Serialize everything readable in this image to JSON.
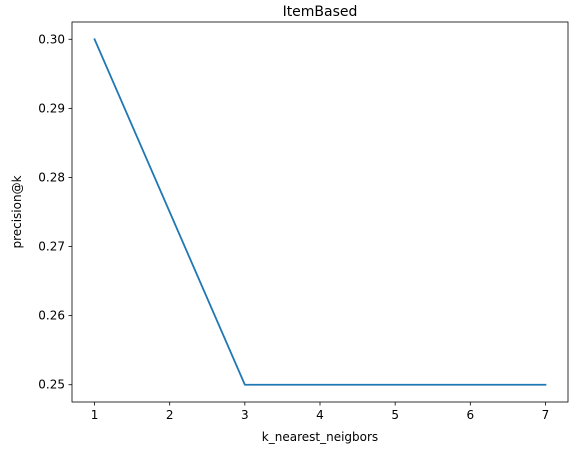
{
  "chart_data": {
    "type": "line",
    "title": "ItemBased",
    "xlabel": "k_nearest_neigbors",
    "ylabel": "precision@k",
    "x": [
      1,
      3,
      7
    ],
    "series": [
      {
        "values": [
          0.3,
          0.25,
          0.25
        ],
        "color": "#1f77b4"
      }
    ],
    "xticks": [
      "1",
      "2",
      "3",
      "4",
      "5",
      "6",
      "7"
    ],
    "yticks": [
      "0.25",
      "0.26",
      "0.27",
      "0.28",
      "0.29",
      "0.30"
    ],
    "xlim": [
      0.7,
      7.3
    ],
    "ylim": [
      0.2475,
      0.3025
    ],
    "grid": false
  }
}
